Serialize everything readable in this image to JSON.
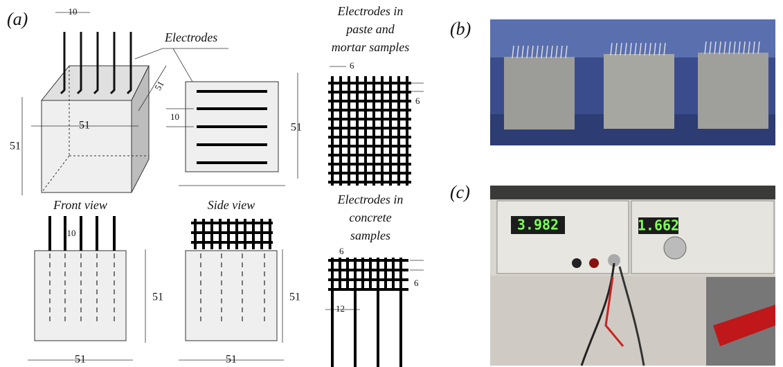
{
  "panel_a": {
    "label": "(a)",
    "cube": {
      "spacing": "10",
      "electrodes_label": "Electrodes",
      "depth": "51",
      "width": "51",
      "height": "51"
    },
    "side_plate": {
      "spacing": "10",
      "height": "51"
    },
    "mesh_paste": {
      "title_lines": [
        "Electrodes in",
        "paste and",
        "mortar samples"
      ],
      "spacing_x": "6",
      "spacing_y": "6"
    },
    "front_view": {
      "title": "Front view",
      "spacing": "10",
      "height": "51",
      "width": "51"
    },
    "side_view": {
      "title": "Side view",
      "height": "51",
      "width": "51"
    },
    "mesh_concrete": {
      "title_lines": [
        "Electrodes in",
        "concrete",
        "samples"
      ],
      "spacing_x": "6",
      "spacing_y": "6",
      "spacing_long": "12"
    }
  },
  "panel_b": {
    "label": "(b)"
  },
  "panel_c": {
    "label": "(c)",
    "display_left": "3.982",
    "display_right": "1.662"
  }
}
